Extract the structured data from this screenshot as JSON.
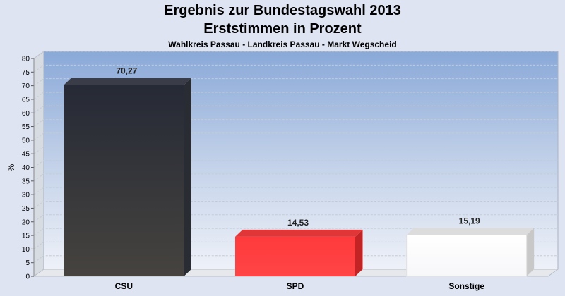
{
  "chart_data": {
    "type": "bar",
    "title": "Ergebnis zur Bundestagswahl 2013",
    "title_line2": "Erststimmen in Prozent",
    "subtitle": "Wahlkreis Passau - Landkreis Passau - Markt Wegscheid",
    "ylabel": "%",
    "xlabel": "",
    "ylim": [
      0,
      80
    ],
    "yticks": [
      0,
      5,
      10,
      15,
      20,
      25,
      30,
      35,
      40,
      45,
      50,
      55,
      60,
      65,
      70,
      75,
      80
    ],
    "categories": [
      "CSU",
      "SPD",
      "Sonstige"
    ],
    "values": [
      70.27,
      14.53,
      15.19
    ],
    "value_labels": [
      "70,27",
      "14,53",
      "15,19"
    ],
    "colors": [
      "#33343c",
      "#ff3a3c",
      "#ffffff"
    ],
    "grid": true,
    "legend": "none"
  }
}
